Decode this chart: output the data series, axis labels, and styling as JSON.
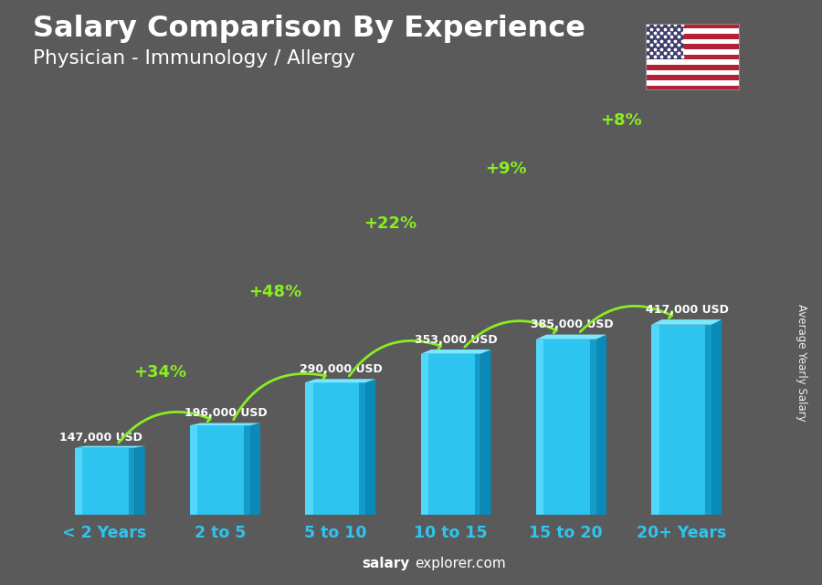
{
  "categories": [
    "< 2 Years",
    "2 to 5",
    "5 to 10",
    "10 to 15",
    "15 to 20",
    "20+ Years"
  ],
  "values": [
    147000,
    196000,
    290000,
    353000,
    385000,
    417000
  ],
  "pct_changes": [
    "+34%",
    "+48%",
    "+22%",
    "+9%",
    "+8%"
  ],
  "value_labels": [
    "147,000 USD",
    "196,000 USD",
    "290,000 USD",
    "353,000 USD",
    "385,000 USD",
    "417,000 USD"
  ],
  "bar_color_main": "#2ec4f0",
  "bar_color_left": "#5adcff",
  "bar_color_right": "#0a8ab8",
  "bar_color_top": "#7ae8ff",
  "bar_color_top_right": "#0f9fd4",
  "bg_color": "#5a5a5a",
  "title_line1": "Salary Comparison By Experience",
  "title_line2": "Physician - Immunology / Allergy",
  "ylabel": "Average Yearly Salary",
  "footer_bold": "salary",
  "footer_normal": "explorer.com",
  "pct_color": "#88ee22",
  "value_label_color": "#ffffff",
  "xlabel_color": "#2ec4f0",
  "title_color": "#ffffff",
  "subtitle_color": "#ffffff"
}
